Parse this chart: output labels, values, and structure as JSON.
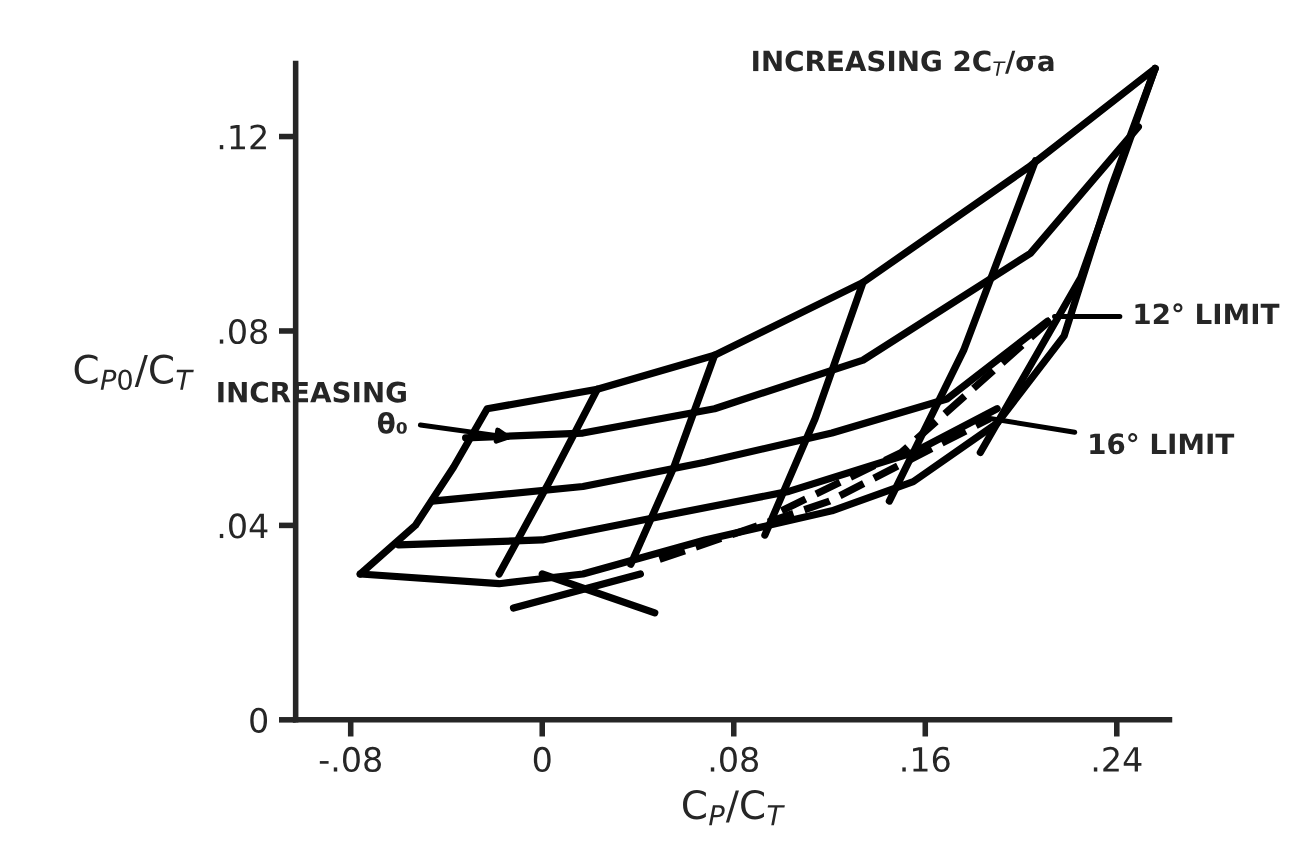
{
  "chart_data": {
    "type": "line",
    "xlabel": "C$_{P}$/C$_{T}$",
    "ylabel": "C$_{P0}$/C$_{T}$",
    "xlim": [
      -0.103,
      0.262
    ],
    "ylim": [
      0,
      0.135
    ],
    "xticks": [
      {
        "value": -0.08,
        "label": "-.08"
      },
      0,
      {
        "value": 0.08,
        "label": ".08"
      },
      {
        "value": 0.16,
        "label": ".16"
      },
      {
        "value": 0.24,
        "label": ".24"
      }
    ],
    "yticks": [
      0,
      {
        "value": 0.04,
        "label": ".04"
      },
      {
        "value": 0.08,
        "label": ".08"
      },
      {
        "value": 0.12,
        "label": ".12"
      }
    ],
    "grid": false,
    "legend": false,
    "marker": "none",
    "series": [
      {
        "color": "#000000",
        "x": [
          -0.076,
          -0.053,
          -0.037,
          -0.023,
          0.023,
          0.072,
          0.134,
          0.204,
          0.256
        ],
        "values": [
          0.03,
          0.04,
          0.052,
          0.064,
          0.068,
          0.075,
          0.09,
          0.114,
          0.134
        ]
      },
      {
        "color": "#000000",
        "x": [
          -0.032,
          0.017,
          0.072,
          0.134,
          0.204,
          0.249
        ],
        "values": [
          0.058,
          0.059,
          0.064,
          0.074,
          0.096,
          0.122
        ]
      },
      {
        "color": "#000000",
        "x": [
          -0.046,
          0.017,
          0.068,
          0.121,
          0.169,
          0.211
        ],
        "values": [
          0.045,
          0.048,
          0.053,
          0.059,
          0.066,
          0.082
        ]
      },
      {
        "color": "#000000",
        "x": [
          -0.06,
          0,
          0.051,
          0.103,
          0.155,
          0.19
        ],
        "values": [
          0.036,
          0.037,
          0.042,
          0.047,
          0.055,
          0.064
        ]
      },
      {
        "color": "#000000",
        "x": [
          -0.076,
          -0.018,
          0.017,
          0.068,
          0.121,
          0.155,
          0.19,
          0.218,
          0.238,
          0.256
        ],
        "values": [
          0.03,
          0.028,
          0.03,
          0.037,
          0.043,
          0.049,
          0.061,
          0.079,
          0.11,
          0.134
        ]
      },
      {
        "color": "#000000",
        "x": [
          0.023,
          0.003,
          -0.018
        ],
        "values": [
          0.068,
          0.049,
          0.03
        ]
      },
      {
        "color": "#000000",
        "x": [
          0.072,
          0.055,
          0.037
        ],
        "values": [
          0.075,
          0.052,
          0.032
        ]
      },
      {
        "color": "#000000",
        "x": [
          0.134,
          0.114,
          0.093
        ],
        "values": [
          0.09,
          0.062,
          0.038
        ]
      },
      {
        "color": "#000000",
        "x": [
          0.206,
          0.176,
          0.145
        ],
        "values": [
          0.115,
          0.076,
          0.045
        ]
      },
      {
        "color": "#000000",
        "x": [
          0.256,
          0.225,
          0.183
        ],
        "values": [
          0.134,
          0.091,
          0.055
        ]
      },
      {
        "color": "#000000",
        "line_style": "dashed",
        "x": [
          0.1,
          0.15,
          0.214
        ],
        "values": [
          0.043,
          0.055,
          0.083
        ]
      },
      {
        "color": "#000000",
        "line_style": "dashed",
        "x": [
          0.049,
          0.12,
          0.187
        ],
        "values": [
          0.033,
          0.045,
          0.062
        ]
      },
      {
        "color": "#000000",
        "x": [
          -0.012,
          0.041
        ],
        "values": [
          0.023,
          0.03
        ]
      },
      {
        "color": "#000000",
        "x": [
          0.0,
          0.047
        ],
        "values": [
          0.03,
          0.022
        ]
      }
    ],
    "annotations": [
      {
        "text": "INCREASING\nθ₀",
        "x": -0.012,
        "y": 0.058
      },
      "INCREASING 2C$_{T}$/σa",
      {
        "text": "12° LIMIT",
        "x": 0.214,
        "y": 0.083
      },
      {
        "text": "16° LIMIT",
        "x": 0.187,
        "y": 0.062
      }
    ]
  }
}
